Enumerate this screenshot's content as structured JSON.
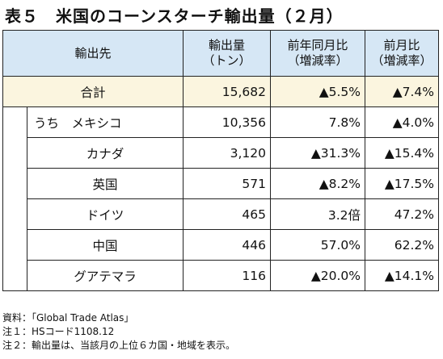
{
  "title": "表５　米国のコーンスターチ輸出量（２月）",
  "table": {
    "headers": {
      "destination": "輸出先",
      "volume_line1": "輸出量",
      "volume_line2": "（トン）",
      "yoy_line1": "前年同月比",
      "yoy_line2": "（増減率）",
      "mom_line1": "前月比",
      "mom_line2": "（増減率）"
    },
    "total": {
      "name": "合計",
      "volume": "15,682",
      "yoy": "▲5.5%",
      "mom": "▲7.4%"
    },
    "rows": [
      {
        "name": "うち　メキシコ",
        "volume": "10,356",
        "yoy": "7.8%",
        "mom": "▲4.0%"
      },
      {
        "name": "カナダ",
        "volume": "3,120",
        "yoy": "▲31.3%",
        "mom": "▲15.4%"
      },
      {
        "name": "英国",
        "volume": "571",
        "yoy": "▲8.2%",
        "mom": "▲17.5%"
      },
      {
        "name": "ドイツ",
        "volume": "465",
        "yoy": "3.2倍",
        "mom": "47.2%"
      },
      {
        "name": "中国",
        "volume": "446",
        "yoy": "57.0%",
        "mom": "62.2%"
      },
      {
        "name": "グアテマラ",
        "volume": "116",
        "yoy": "▲20.0%",
        "mom": "▲14.1%"
      }
    ]
  },
  "notes": [
    "資料：「Global Trade Atlas」",
    "注１：HSコード1108.12",
    "注２：輸出量は、当該月の上位６カ国・地域を表示。"
  ]
}
